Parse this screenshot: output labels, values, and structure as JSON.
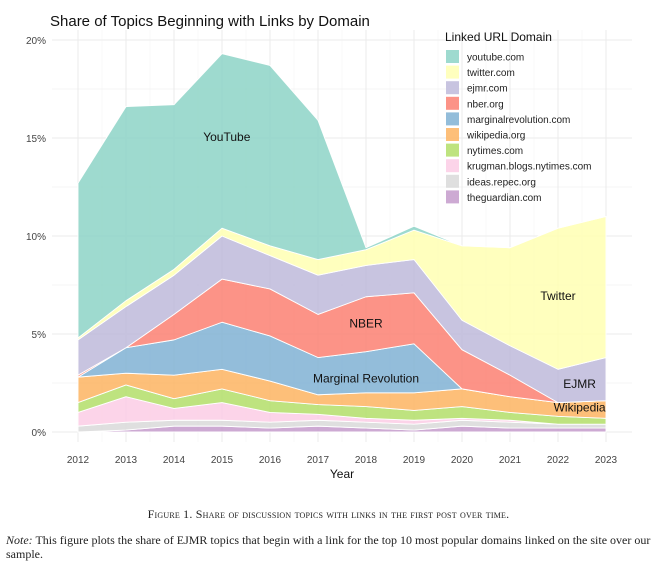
{
  "chart_data": {
    "type": "area",
    "stacked": true,
    "title": "Share of Topics Beginning with Links by Domain",
    "xlabel": "Year",
    "ylabel": "",
    "x": [
      2012,
      2013,
      2014,
      2015,
      2016,
      2017,
      2018,
      2019,
      2020,
      2021,
      2022,
      2023
    ],
    "ylim": [
      0,
      20
    ],
    "yticks": [
      0,
      5,
      10,
      15,
      20
    ],
    "ytick_labels": [
      "0%",
      "5%",
      "10%",
      "15%",
      "20%"
    ],
    "legend_title": "Linked URL Domain",
    "legend_position": "top-right",
    "series": [
      {
        "name": "theguardian.com",
        "color": "#c49bcb",
        "values": [
          0.0,
          0.1,
          0.3,
          0.3,
          0.2,
          0.3,
          0.2,
          0.1,
          0.3,
          0.2,
          0.2,
          0.2
        ]
      },
      {
        "name": "ideas.repec.org",
        "color": "#d9d9d9",
        "values": [
          0.3,
          0.4,
          0.3,
          0.3,
          0.3,
          0.3,
          0.3,
          0.3,
          0.3,
          0.3,
          0.2,
          0.2
        ]
      },
      {
        "name": "krugman.blogs.nytimes.com",
        "color": "#fccde5",
        "values": [
          0.7,
          1.3,
          0.6,
          0.9,
          0.5,
          0.3,
          0.2,
          0.2,
          0.1,
          0.1,
          0.0,
          0.0
        ]
      },
      {
        "name": "nytimes.com",
        "color": "#b3de69",
        "values": [
          0.5,
          0.6,
          0.5,
          0.7,
          0.6,
          0.5,
          0.6,
          0.5,
          0.6,
          0.4,
          0.4,
          0.3
        ]
      },
      {
        "name": "wikipedia.org",
        "color": "#fdb462",
        "values": [
          1.3,
          0.6,
          1.2,
          1.0,
          1.0,
          0.5,
          0.7,
          0.9,
          0.9,
          0.8,
          0.7,
          0.9
        ]
      },
      {
        "name": "marginalrevolution.com",
        "color": "#80b1d3",
        "values": [
          0.0,
          1.3,
          1.8,
          2.4,
          2.3,
          1.9,
          2.1,
          2.5,
          0.0,
          0.0,
          0.0,
          0.0
        ]
      },
      {
        "name": "nber.org",
        "color": "#fb8072",
        "values": [
          0.1,
          0.0,
          1.3,
          2.2,
          2.4,
          2.2,
          2.8,
          2.6,
          2.0,
          1.1,
          0.0,
          0.0
        ]
      },
      {
        "name": "ejmr.com",
        "color": "#bebada",
        "values": [
          1.8,
          2.1,
          2.0,
          2.2,
          1.7,
          2.0,
          1.6,
          1.7,
          1.5,
          1.5,
          1.7,
          2.2
        ]
      },
      {
        "name": "twitter.com",
        "color": "#ffffb3",
        "values": [
          0.1,
          0.3,
          0.3,
          0.4,
          0.5,
          0.8,
          0.8,
          1.5,
          3.8,
          5.0,
          7.2,
          7.2
        ]
      },
      {
        "name": "youtube.com",
        "color": "#8dd3c7",
        "values": [
          7.9,
          9.9,
          8.4,
          8.9,
          9.2,
          7.1,
          0.1,
          0.2,
          0.0,
          0.0,
          0.0,
          0.0
        ]
      }
    ],
    "legend_order": [
      "youtube.com",
      "twitter.com",
      "ejmr.com",
      "nber.org",
      "marginalrevolution.com",
      "wikipedia.org",
      "nytimes.com",
      "krugman.blogs.nytimes.com",
      "ideas.repec.org",
      "theguardian.com"
    ],
    "annotations": [
      {
        "text": "YouTube",
        "x": 2015.1,
        "y": 15.0
      },
      {
        "text": "NBER",
        "x": 2018.0,
        "y": 5.5
      },
      {
        "text": "Marginal Revolution",
        "x": 2018.0,
        "y": 2.7
      },
      {
        "text": "Twitter",
        "x": 2022.0,
        "y": 6.9
      },
      {
        "text": "EJMR",
        "x": 2022.45,
        "y": 2.4
      },
      {
        "text": "Wikipedia",
        "x": 2022.45,
        "y": 1.2
      }
    ]
  },
  "figure": {
    "caption": "Figure 1. Share of discussion topics with links in the first post over time.",
    "note_label": "Note:",
    "note_text": " This figure plots the share of EJMR topics that begin with a link for the top 10 most popular domains linked on the site over our sample."
  }
}
